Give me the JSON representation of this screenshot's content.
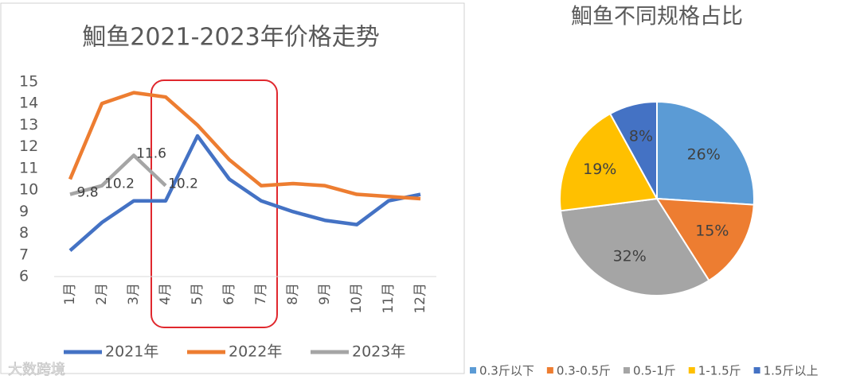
{
  "charts": [
    {
      "chart_data": {
        "type": "line",
        "title": "鮰鱼2021-2023年价格走势",
        "categories": [
          "1月",
          "2月",
          "3月",
          "4月",
          "5月",
          "6月",
          "7月",
          "8月",
          "9月",
          "10月",
          "11月",
          "12月"
        ],
        "series": [
          {
            "name": "2021年",
            "color": "#4472c4",
            "values": [
              7.2,
              8.5,
              9.5,
              9.5,
              12.5,
              10.5,
              9.5,
              9.0,
              8.6,
              8.4,
              9.5,
              9.8
            ]
          },
          {
            "name": "2022年",
            "color": "#ed7d31",
            "values": [
              10.5,
              14.0,
              14.5,
              14.3,
              13.0,
              11.4,
              10.2,
              10.3,
              10.2,
              9.8,
              9.7,
              9.6
            ]
          },
          {
            "name": "2023年",
            "color": "#a5a5a5",
            "values": [
              9.8,
              10.2,
              11.6,
              10.2,
              null,
              null,
              null,
              null,
              null,
              null,
              null,
              null
            ]
          }
        ],
        "ylim": [
          6,
          15
        ],
        "yticks": [
          6,
          7,
          8,
          9,
          10,
          11,
          12,
          13,
          14,
          15
        ],
        "data_labels_series": 2
      }
    },
    {
      "chart_data": {
        "type": "pie",
        "title": "鮰鱼不同规格占比",
        "categories": [
          "0.3斤以下",
          "0.3-0.5斤",
          "0.5-1斤",
          "1-1.5斤",
          "1.5斤以上"
        ],
        "values": [
          26,
          15,
          32,
          19,
          8
        ],
        "value_labels": [
          "26%",
          "15%",
          "32%",
          "19%",
          "8%"
        ],
        "colors": [
          "#5b9bd5",
          "#ed7d31",
          "#a5a5a5",
          "#ffc000",
          "#4472c4"
        ]
      }
    }
  ],
  "watermark": "大数跨境"
}
